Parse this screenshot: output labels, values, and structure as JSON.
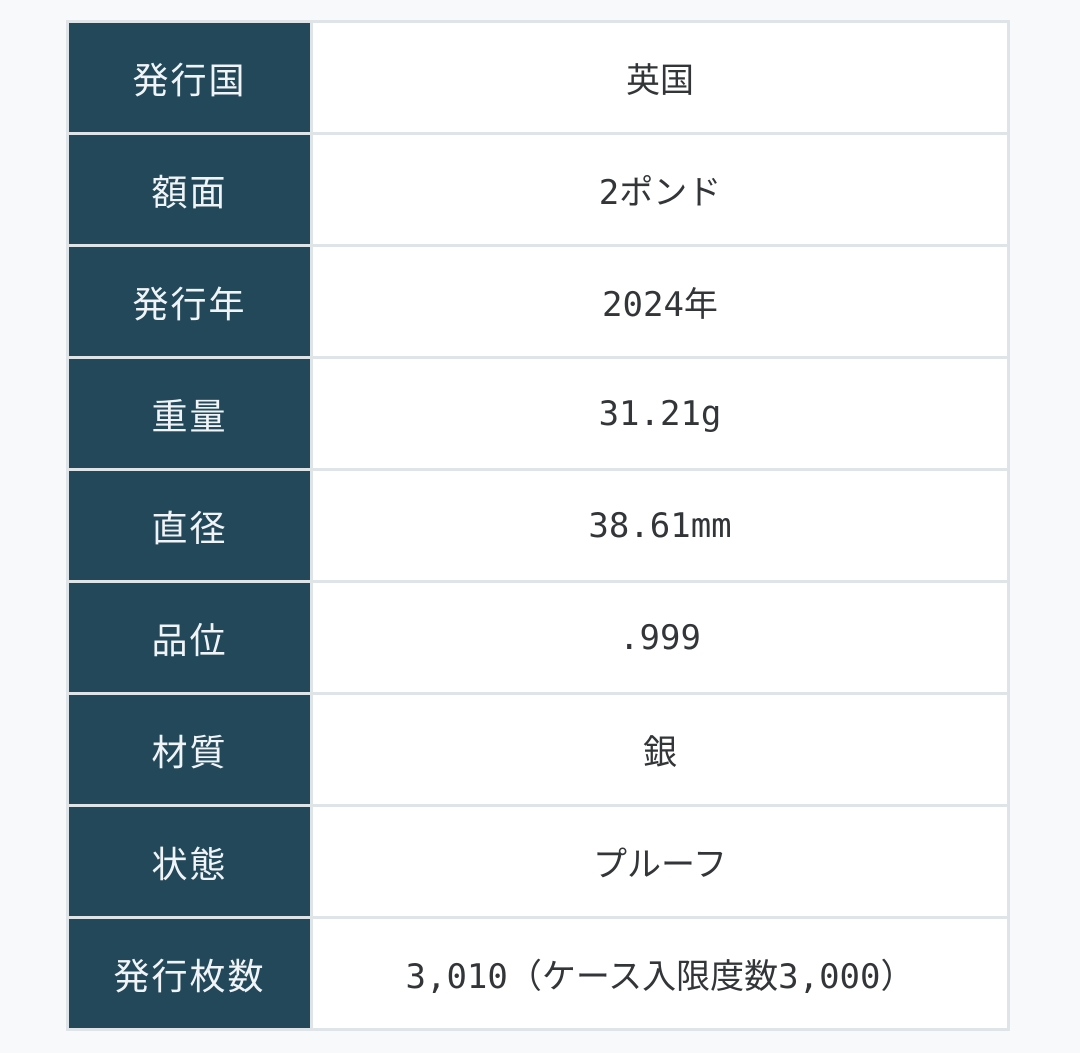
{
  "colors": {
    "page_bg": "#f8f9fa",
    "header_bg": "#22485a",
    "header_text": "#f0f4f6",
    "value_text": "#323638",
    "divider": "#dfe4e8",
    "cell_bg": "#ffffff"
  },
  "spec_table": {
    "rows": [
      {
        "label": "発行国",
        "value": "英国"
      },
      {
        "label": "額面",
        "value": "2ポンド"
      },
      {
        "label": "発行年",
        "value": "2024年"
      },
      {
        "label": "重量",
        "value": "31.21g"
      },
      {
        "label": "直径",
        "value": "38.61mm"
      },
      {
        "label": "品位",
        "value": ".999"
      },
      {
        "label": "材質",
        "value": "銀"
      },
      {
        "label": "状態",
        "value": "プルーフ"
      },
      {
        "label": "発行枚数",
        "value": "3,010（ケース入限度数3,000）"
      }
    ]
  }
}
